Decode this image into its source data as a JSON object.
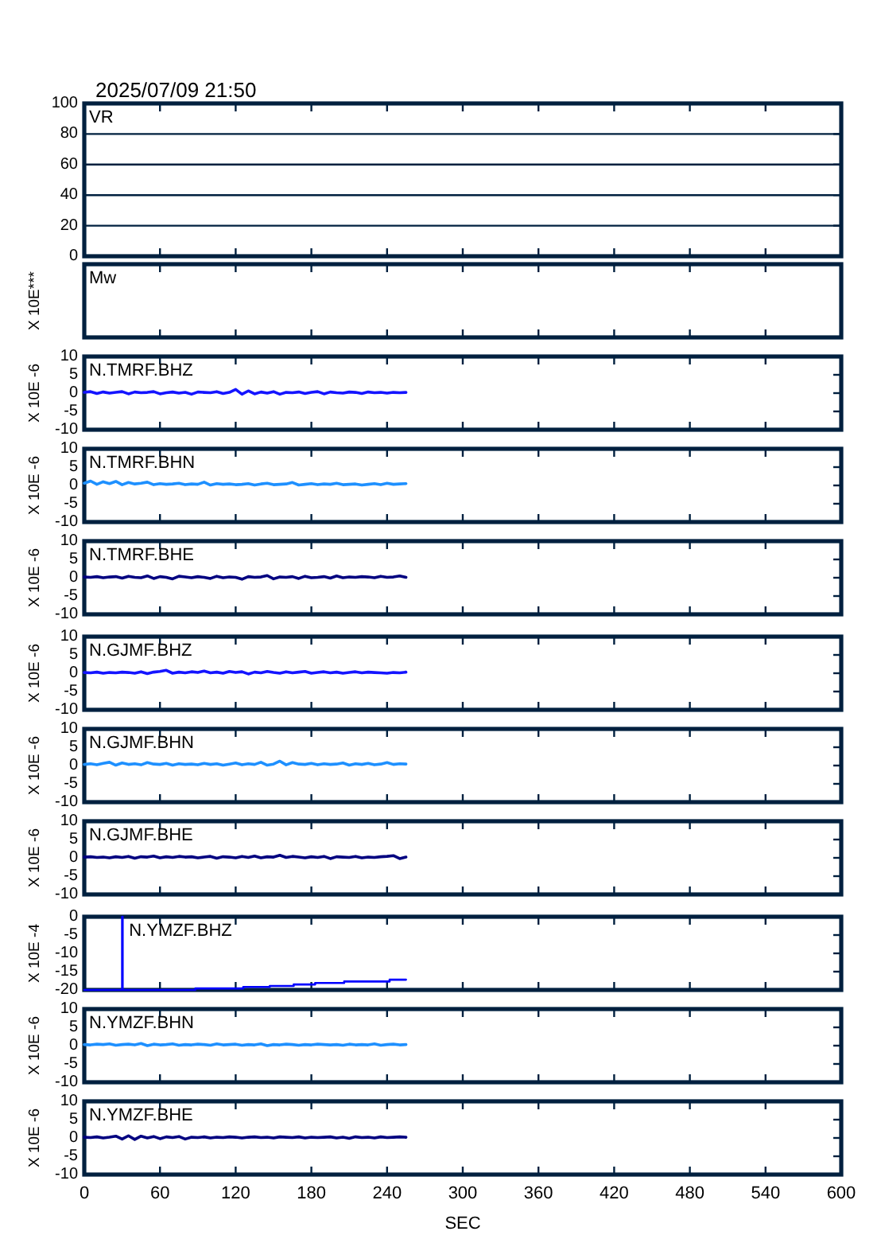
{
  "chart_data": [
    {
      "type": "line",
      "title": "VR",
      "annotations": [
        "2025/07/09 21:50"
      ],
      "xlim": [
        0,
        600
      ],
      "xticks": [
        0,
        60,
        120,
        180,
        240,
        300,
        360,
        420,
        480,
        540,
        600
      ],
      "ylim": [
        0,
        100
      ],
      "yticks": [
        0,
        20,
        40,
        60,
        80,
        100
      ],
      "grid": "y",
      "tick_labels": "y"
    },
    {
      "type": "other",
      "title": "Mw",
      "ylabel": "X 10E***"
    },
    {
      "type": "line",
      "title": "N.TMRF.BHZ",
      "ylabel": "X 10E -6",
      "xlim": [
        0,
        600
      ],
      "xticks": [
        0,
        60,
        120,
        180,
        240,
        300,
        360,
        420,
        480,
        540,
        600
      ],
      "ylim": [
        -10,
        10
      ],
      "yticks": [
        -10,
        -5,
        0,
        5,
        10
      ],
      "tick_labels": "y",
      "x": [
        0,
        5,
        10,
        15,
        20,
        25,
        30,
        35,
        40,
        45,
        50,
        55,
        60,
        65,
        70,
        75,
        80,
        85,
        90,
        95,
        100,
        105,
        110,
        115,
        120,
        125,
        130,
        135,
        140,
        145,
        150,
        155,
        160,
        165,
        170,
        175,
        180,
        185,
        190,
        195,
        200,
        205,
        210,
        215,
        220,
        225,
        230,
        235,
        240,
        245,
        250,
        255
      ],
      "series": [
        {
          "color": "#1414ff",
          "values": [
            0.2,
            0.4,
            -0.1,
            0.3,
            0.0,
            0.2,
            0.4,
            -0.2,
            0.3,
            0.1,
            0.2,
            0.4,
            -0.2,
            0.1,
            0.3,
            0.0,
            0.2,
            -0.3,
            0.3,
            0.2,
            0.1,
            0.4,
            -0.1,
            0.2,
            1.0,
            -0.3,
            0.6,
            -0.2,
            0.3,
            0.0,
            0.4,
            -0.3,
            0.2,
            0.1,
            0.3,
            -0.1,
            0.2,
            0.4,
            -0.2,
            0.3,
            0.1,
            0.0,
            0.3,
            0.2,
            -0.1,
            0.3,
            0.1,
            0.2,
            0.0,
            0.2,
            0.1,
            0.2
          ]
        }
      ]
    },
    {
      "type": "line",
      "title": "N.TMRF.BHN",
      "ylabel": "X 10E -6",
      "xlim": [
        0,
        600
      ],
      "xticks": [
        0,
        60,
        120,
        180,
        240,
        300,
        360,
        420,
        480,
        540,
        600
      ],
      "ylim": [
        -10,
        10
      ],
      "yticks": [
        -10,
        -5,
        0,
        5,
        10
      ],
      "tick_labels": "y",
      "x": [
        0,
        5,
        10,
        15,
        20,
        25,
        30,
        35,
        40,
        45,
        50,
        55,
        60,
        65,
        70,
        75,
        80,
        85,
        90,
        95,
        100,
        105,
        110,
        115,
        120,
        125,
        130,
        135,
        140,
        145,
        150,
        155,
        160,
        165,
        170,
        175,
        180,
        185,
        190,
        195,
        200,
        205,
        210,
        215,
        220,
        225,
        230,
        235,
        240,
        245,
        250,
        255
      ],
      "series": [
        {
          "color": "#1e90ff",
          "values": [
            0.6,
            1.2,
            0.3,
            1.0,
            0.5,
            1.1,
            0.2,
            0.8,
            0.4,
            0.6,
            0.9,
            0.2,
            0.5,
            0.3,
            0.4,
            0.6,
            0.2,
            0.4,
            0.3,
            0.9,
            0.1,
            0.5,
            0.3,
            0.4,
            0.2,
            0.3,
            0.5,
            0.1,
            0.4,
            0.6,
            0.2,
            0.3,
            0.4,
            0.8,
            0.1,
            0.3,
            0.5,
            0.2,
            0.4,
            0.3,
            0.6,
            0.2,
            0.3,
            0.4,
            0.1,
            0.3,
            0.5,
            0.2,
            0.6,
            0.3,
            0.4,
            0.5
          ]
        }
      ]
    },
    {
      "type": "line",
      "title": "N.TMRF.BHE",
      "ylabel": "X 10E -6",
      "xlim": [
        0,
        600
      ],
      "xticks": [
        0,
        60,
        120,
        180,
        240,
        300,
        360,
        420,
        480,
        540,
        600
      ],
      "ylim": [
        -10,
        10
      ],
      "yticks": [
        -10,
        -5,
        0,
        5,
        10
      ],
      "tick_labels": "y",
      "x": [
        0,
        5,
        10,
        15,
        20,
        25,
        30,
        35,
        40,
        45,
        50,
        55,
        60,
        65,
        70,
        75,
        80,
        85,
        90,
        95,
        100,
        105,
        110,
        115,
        120,
        125,
        130,
        135,
        140,
        145,
        150,
        155,
        160,
        165,
        170,
        175,
        180,
        185,
        190,
        195,
        200,
        205,
        210,
        215,
        220,
        225,
        230,
        235,
        240,
        245,
        250,
        255
      ],
      "series": [
        {
          "color": "#000080",
          "values": [
            0.2,
            0.1,
            0.3,
            0.0,
            0.2,
            0.3,
            -0.1,
            0.4,
            0.1,
            0.0,
            0.5,
            -0.2,
            0.3,
            0.1,
            -0.3,
            0.4,
            0.2,
            0.0,
            0.3,
            0.1,
            -0.2,
            0.4,
            0.0,
            0.2,
            0.1,
            -0.4,
            0.3,
            0.1,
            0.2,
            0.6,
            -0.3,
            0.2,
            0.1,
            0.3,
            -0.2,
            0.4,
            0.0,
            0.1,
            0.3,
            -0.1,
            0.5,
            0.0,
            0.2,
            0.1,
            0.3,
            0.2,
            0.0,
            0.4,
            0.1,
            0.2,
            0.5,
            0.1
          ]
        }
      ]
    },
    {
      "type": "line",
      "title": "N.GJMF.BHZ",
      "ylabel": "X 10E -6",
      "xlim": [
        0,
        600
      ],
      "xticks": [
        0,
        60,
        120,
        180,
        240,
        300,
        360,
        420,
        480,
        540,
        600
      ],
      "ylim": [
        -10,
        10
      ],
      "yticks": [
        -10,
        -5,
        0,
        5,
        10
      ],
      "tick_labels": "y",
      "x": [
        0,
        5,
        10,
        15,
        20,
        25,
        30,
        35,
        40,
        45,
        50,
        55,
        60,
        65,
        70,
        75,
        80,
        85,
        90,
        95,
        100,
        105,
        110,
        115,
        120,
        125,
        130,
        135,
        140,
        145,
        150,
        155,
        160,
        165,
        170,
        175,
        180,
        185,
        190,
        195,
        200,
        205,
        210,
        215,
        220,
        225,
        230,
        235,
        240,
        245,
        250,
        255
      ],
      "series": [
        {
          "color": "#1414ff",
          "values": [
            0.2,
            0.1,
            0.3,
            0.0,
            0.2,
            0.1,
            0.3,
            0.2,
            0.0,
            0.4,
            -0.1,
            0.3,
            0.5,
            0.8,
            0.0,
            0.3,
            0.1,
            0.4,
            0.2,
            0.6,
            0.1,
            0.3,
            0.0,
            0.5,
            0.2,
            0.4,
            -0.2,
            0.3,
            0.1,
            0.5,
            0.2,
            0.0,
            0.4,
            0.1,
            0.3,
            0.5,
            0.0,
            0.2,
            0.4,
            0.1,
            0.3,
            0.0,
            0.2,
            0.4,
            0.1,
            0.3,
            0.2,
            0.1,
            0.0,
            0.2,
            0.1,
            0.3
          ]
        }
      ]
    },
    {
      "type": "line",
      "title": "N.GJMF.BHN",
      "ylabel": "X 10E -6",
      "xlim": [
        0,
        600
      ],
      "xticks": [
        0,
        60,
        120,
        180,
        240,
        300,
        360,
        420,
        480,
        540,
        600
      ],
      "ylim": [
        -10,
        10
      ],
      "yticks": [
        -10,
        -5,
        0,
        5,
        10
      ],
      "tick_labels": "y",
      "x": [
        0,
        5,
        10,
        15,
        20,
        25,
        30,
        35,
        40,
        45,
        50,
        55,
        60,
        65,
        70,
        75,
        80,
        85,
        90,
        95,
        100,
        105,
        110,
        115,
        120,
        125,
        130,
        135,
        140,
        145,
        150,
        155,
        160,
        165,
        170,
        175,
        180,
        185,
        190,
        195,
        200,
        205,
        210,
        215,
        220,
        225,
        230,
        235,
        240,
        245,
        250,
        255
      ],
      "series": [
        {
          "color": "#1e90ff",
          "values": [
            0.3,
            0.5,
            0.2,
            0.6,
            0.9,
            0.1,
            0.7,
            0.3,
            0.5,
            0.2,
            0.8,
            0.4,
            0.3,
            0.6,
            0.1,
            0.5,
            0.3,
            0.4,
            0.2,
            0.6,
            0.3,
            0.5,
            0.1,
            0.4,
            0.7,
            0.2,
            0.5,
            0.3,
            0.9,
            0.1,
            0.4,
            1.2,
            0.2,
            0.8,
            0.4,
            0.3,
            0.6,
            0.2,
            0.5,
            0.3,
            0.4,
            0.7,
            0.1,
            0.5,
            0.3,
            0.6,
            0.2,
            0.4,
            0.8,
            0.3,
            0.5,
            0.4
          ]
        }
      ]
    },
    {
      "type": "line",
      "title": "N.GJMF.BHE",
      "ylabel": "X 10E -6",
      "xlim": [
        0,
        600
      ],
      "xticks": [
        0,
        60,
        120,
        180,
        240,
        300,
        360,
        420,
        480,
        540,
        600
      ],
      "ylim": [
        -10,
        10
      ],
      "yticks": [
        -10,
        -5,
        0,
        5,
        10
      ],
      "tick_labels": "y",
      "x": [
        0,
        5,
        10,
        15,
        20,
        25,
        30,
        35,
        40,
        45,
        50,
        55,
        60,
        65,
        70,
        75,
        80,
        85,
        90,
        95,
        100,
        105,
        110,
        115,
        120,
        125,
        130,
        135,
        140,
        145,
        150,
        155,
        160,
        165,
        170,
        175,
        180,
        185,
        190,
        195,
        200,
        205,
        210,
        215,
        220,
        225,
        230,
        235,
        240,
        245,
        250,
        255
      ],
      "series": [
        {
          "color": "#000080",
          "values": [
            0.2,
            0.3,
            0.1,
            0.2,
            0.0,
            0.3,
            0.1,
            0.4,
            -0.1,
            0.3,
            0.2,
            0.5,
            0.0,
            0.3,
            0.1,
            0.4,
            0.2,
            0.3,
            0.0,
            0.2,
            0.4,
            -0.1,
            0.3,
            0.2,
            0.0,
            0.4,
            0.1,
            0.5,
            0.0,
            0.3,
            0.2,
            0.7,
            0.1,
            0.4,
            0.2,
            0.0,
            0.3,
            0.1,
            0.4,
            -0.2,
            0.3,
            0.2,
            0.1,
            0.4,
            0.0,
            0.2,
            0.1,
            0.3,
            0.4,
            0.6,
            -0.2,
            0.2
          ]
        }
      ]
    },
    {
      "type": "step",
      "title": "N.YMZF.BHZ",
      "ylabel": "X 10E -4",
      "xlim": [
        0,
        600
      ],
      "xticks": [
        0,
        60,
        120,
        180,
        240,
        300,
        360,
        420,
        480,
        540,
        600
      ],
      "ylim": [
        -20,
        0
      ],
      "yticks": [
        -20,
        -15,
        -10,
        -5,
        0
      ],
      "tick_labels": "y",
      "series": [
        {
          "color": "#0000ff",
          "x": [
            0,
            30,
            30.4,
            88,
            126,
            147,
            166,
            183,
            206,
            242,
            255
          ],
          "values": [
            -20,
            0,
            -20,
            -19.6,
            -19.2,
            -18.9,
            -18.5,
            -18.1,
            -17.7,
            -17.2,
            -17.2
          ]
        }
      ]
    },
    {
      "type": "line",
      "title": "N.YMZF.BHN",
      "ylabel": "X 10E -6",
      "xlim": [
        0,
        600
      ],
      "xticks": [
        0,
        60,
        120,
        180,
        240,
        300,
        360,
        420,
        480,
        540,
        600
      ],
      "ylim": [
        -10,
        10
      ],
      "yticks": [
        -10,
        -5,
        0,
        5,
        10
      ],
      "tick_labels": "y",
      "x": [
        0,
        5,
        10,
        15,
        20,
        25,
        30,
        35,
        40,
        45,
        50,
        55,
        60,
        65,
        70,
        75,
        80,
        85,
        90,
        95,
        100,
        105,
        110,
        115,
        120,
        125,
        130,
        135,
        140,
        145,
        150,
        155,
        160,
        165,
        170,
        175,
        180,
        185,
        190,
        195,
        200,
        205,
        210,
        215,
        220,
        225,
        230,
        235,
        240,
        245,
        250,
        255
      ],
      "series": [
        {
          "color": "#1e90ff",
          "values": [
            0.3,
            0.2,
            0.4,
            0.3,
            0.5,
            0.1,
            0.3,
            0.4,
            0.2,
            0.6,
            0.0,
            0.4,
            0.2,
            0.3,
            0.5,
            0.1,
            0.3,
            0.2,
            0.4,
            0.3,
            0.1,
            0.5,
            0.2,
            0.3,
            0.4,
            0.1,
            0.3,
            0.2,
            0.5,
            0.0,
            0.3,
            0.2,
            0.4,
            0.3,
            0.1,
            0.3,
            0.2,
            0.4,
            0.3,
            0.2,
            0.3,
            0.1,
            0.4,
            0.2,
            0.3,
            0.2,
            0.5,
            0.1,
            0.3,
            0.4,
            0.2,
            0.3
          ]
        }
      ]
    },
    {
      "type": "line",
      "title": "N.YMZF.BHE",
      "ylabel": "X 10E -6",
      "xlabel": "SEC",
      "xlim": [
        0,
        600
      ],
      "xticks": [
        0,
        60,
        120,
        180,
        240,
        300,
        360,
        420,
        480,
        540,
        600
      ],
      "ylim": [
        -10,
        10
      ],
      "yticks": [
        -10,
        -5,
        0,
        5,
        10
      ],
      "x": [
        0,
        5,
        10,
        15,
        20,
        25,
        30,
        35,
        40,
        45,
        50,
        55,
        60,
        65,
        70,
        75,
        80,
        85,
        90,
        95,
        100,
        105,
        110,
        115,
        120,
        125,
        130,
        135,
        140,
        145,
        150,
        155,
        160,
        165,
        170,
        175,
        180,
        185,
        190,
        195,
        200,
        205,
        210,
        215,
        220,
        225,
        230,
        235,
        240,
        245,
        250,
        255
      ],
      "series": [
        {
          "color": "#000080",
          "values": [
            0.2,
            0.1,
            0.3,
            0.0,
            0.2,
            0.5,
            -0.3,
            0.6,
            -0.4,
            0.5,
            0.0,
            0.4,
            -0.2,
            0.3,
            0.1,
            0.4,
            -0.3,
            0.2,
            0.1,
            0.3,
            0.0,
            0.2,
            0.1,
            0.3,
            0.2,
            0.0,
            0.2,
            0.3,
            0.1,
            0.2,
            0.0,
            0.3,
            0.2,
            0.1,
            0.3,
            0.0,
            0.2,
            0.1,
            0.2,
            0.3,
            0.0,
            0.2,
            -0.1,
            0.3,
            0.1,
            0.2,
            0.0,
            0.3,
            0.1,
            0.2,
            0.3,
            0.2
          ]
        }
      ]
    }
  ]
}
